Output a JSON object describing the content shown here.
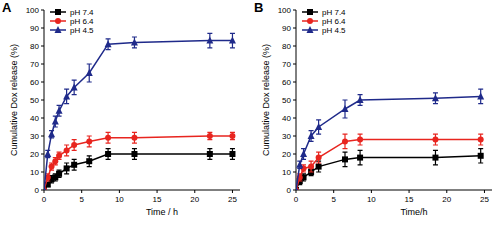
{
  "chart_data": [
    {
      "type": "line",
      "title": "A",
      "x_label": "Time / h",
      "y_label": "Cumulative Dox release (%)",
      "x": [
        0,
        0.5,
        1,
        1.5,
        2,
        3,
        4,
        6,
        8.5,
        12,
        22,
        25
      ],
      "xlim": [
        0,
        26
      ],
      "xticks": [
        0,
        5,
        10,
        15,
        20,
        25
      ],
      "ylim": [
        0,
        100
      ],
      "yticks": [
        0,
        10,
        20,
        30,
        40,
        50,
        60,
        70,
        80,
        90,
        100
      ],
      "grid": false,
      "legend": "upper-left",
      "series": [
        {
          "name": "pH 7.4",
          "color": "#000000",
          "marker": "square",
          "values": [
            0,
            3,
            6,
            7,
            9,
            12,
            14,
            16,
            20,
            20,
            20,
            20
          ],
          "errors": [
            0,
            1,
            2,
            2,
            2,
            3,
            3,
            3,
            3,
            3,
            3,
            3
          ]
        },
        {
          "name": "pH 6.4",
          "color": "#e8251f",
          "marker": "circle",
          "values": [
            0,
            7,
            13,
            16,
            19,
            22,
            25,
            27,
            29,
            29,
            30,
            30
          ],
          "errors": [
            0,
            2,
            2,
            2,
            2,
            3,
            3,
            3,
            3,
            3,
            2,
            2
          ]
        },
        {
          "name": "pH 4.5",
          "color": "#1f2a8a",
          "marker": "triangle",
          "values": [
            0,
            20,
            31,
            38,
            44,
            52,
            57,
            65,
            81,
            82,
            83,
            83
          ],
          "errors": [
            0,
            2,
            2,
            3,
            3,
            4,
            4,
            5,
            3,
            3,
            4,
            4
          ]
        }
      ]
    },
    {
      "type": "line",
      "title": "B",
      "x_label": "Time/h",
      "y_label": "Cumulative Dox release (%)",
      "x": [
        0,
        0.5,
        1,
        2,
        3,
        6.5,
        8.5,
        18.5,
        24.5
      ],
      "xlim": [
        0,
        26
      ],
      "xticks": [
        0,
        5,
        10,
        15,
        20,
        25
      ],
      "ylim": [
        0,
        100
      ],
      "yticks": [
        0,
        10,
        20,
        30,
        40,
        50,
        60,
        70,
        80,
        90,
        100
      ],
      "grid": false,
      "legend": "upper-left",
      "series": [
        {
          "name": "pH 7.4",
          "color": "#000000",
          "marker": "square",
          "values": [
            0,
            5,
            7,
            10,
            13,
            17,
            18,
            18,
            19
          ],
          "errors": [
            0,
            2,
            2,
            2,
            3,
            4,
            4,
            4,
            4
          ]
        },
        {
          "name": "pH 6.4",
          "color": "#e8251f",
          "marker": "circle",
          "values": [
            0,
            7,
            12,
            13,
            18,
            27,
            28,
            28,
            28
          ],
          "errors": [
            0,
            2,
            2,
            3,
            3,
            4,
            3,
            3,
            3
          ]
        },
        {
          "name": "pH 4.5",
          "color": "#1f2a8a",
          "marker": "triangle",
          "values": [
            0,
            14,
            20,
            30,
            35,
            45,
            50,
            51,
            52
          ],
          "errors": [
            0,
            2,
            3,
            3,
            4,
            5,
            3,
            3,
            4
          ]
        }
      ]
    }
  ]
}
